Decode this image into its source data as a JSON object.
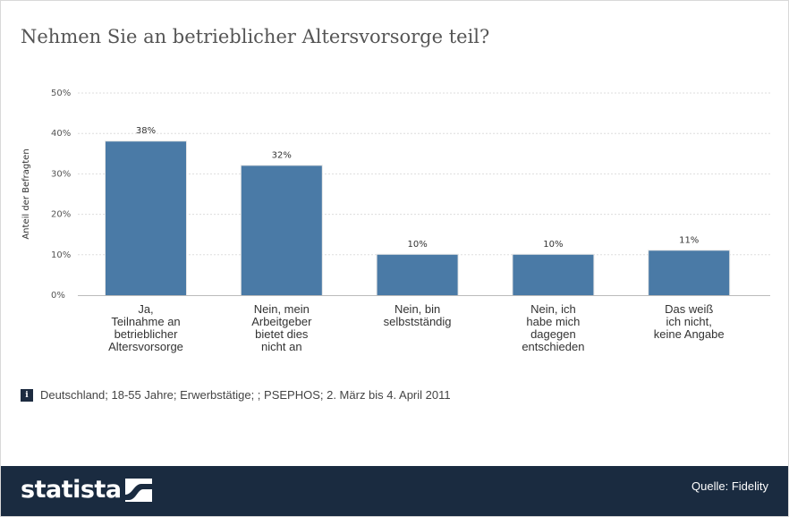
{
  "title": "Nehmen Sie an betrieblicher Altersvorsorge teil?",
  "chart_data": {
    "type": "bar",
    "ylabel": "Anteil der Befragten",
    "ylim": [
      0,
      50
    ],
    "yticks": [
      "0%",
      "10%",
      "20%",
      "30%",
      "40%",
      "50%"
    ],
    "grid": true,
    "bar_color": "#4a7aa6",
    "categories": [
      [
        "Ja,",
        "Teilnahme an",
        "betrieblicher",
        "Altersvorsorge"
      ],
      [
        "Nein, mein",
        "Arbeitgeber",
        "bietet dies",
        "nicht an"
      ],
      [
        "Nein, bin",
        "selbstständig"
      ],
      [
        "Nein, ich",
        "habe mich",
        "dagegen",
        "entschieden"
      ],
      [
        "Das weiß",
        "ich nicht,",
        "keine Angabe"
      ]
    ],
    "values": [
      38,
      32,
      10,
      10,
      11
    ],
    "value_labels": [
      "38%",
      "32%",
      "10%",
      "10%",
      "11%"
    ]
  },
  "info": {
    "icon": "info-icon",
    "text": "Deutschland; 18-55 Jahre; Erwerbstätige; ; PSEPHOS; 2. März bis 4. April 2011"
  },
  "footer": {
    "logo_text": "statista",
    "source": "Quelle: Fidelity",
    "background": "#1a2b40"
  }
}
